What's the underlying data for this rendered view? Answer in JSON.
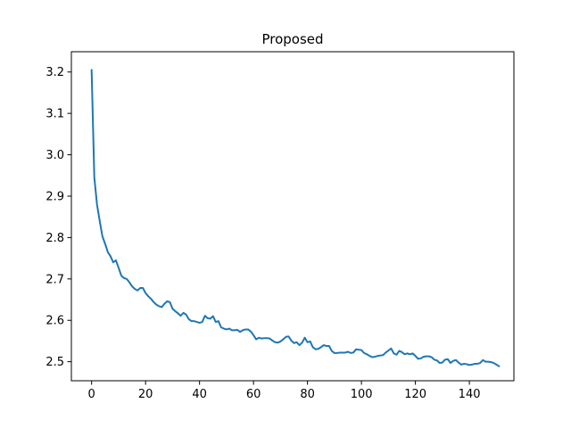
{
  "chart_data": {
    "type": "line",
    "title": "Proposed",
    "xlabel": "",
    "ylabel": "",
    "xlim": [
      -7.5,
      156.5
    ],
    "ylim": [
      2.454,
      3.249
    ],
    "grid": false,
    "legend": "none",
    "x_ticks": [
      0,
      20,
      40,
      60,
      80,
      100,
      120,
      140
    ],
    "y_ticks": [
      2.5,
      2.6,
      2.7,
      2.8,
      2.9,
      3.0,
      3.1,
      3.2
    ],
    "x_tick_labels": [
      "0",
      "20",
      "40",
      "60",
      "80",
      "100",
      "120",
      "140"
    ],
    "y_tick_labels": [
      "2.5",
      "2.6",
      "2.7",
      "2.8",
      "2.9",
      "3.0",
      "3.1",
      "3.2"
    ],
    "series": [
      {
        "color": "#1f77b4",
        "y": [
          3.205,
          2.945,
          2.88,
          2.84,
          2.803,
          2.785,
          2.765,
          2.755,
          2.74,
          2.745,
          2.727,
          2.708,
          2.702,
          2.7,
          2.692,
          2.682,
          2.676,
          2.672,
          2.678,
          2.678,
          2.666,
          2.658,
          2.652,
          2.644,
          2.638,
          2.634,
          2.632,
          2.64,
          2.646,
          2.644,
          2.628,
          2.622,
          2.617,
          2.611,
          2.618,
          2.614,
          2.603,
          2.598,
          2.598,
          2.596,
          2.594,
          2.596,
          2.611,
          2.605,
          2.604,
          2.61,
          2.596,
          2.598,
          2.583,
          2.58,
          2.578,
          2.58,
          2.576,
          2.576,
          2.577,
          2.572,
          2.576,
          2.578,
          2.578,
          2.573,
          2.564,
          2.554,
          2.558,
          2.556,
          2.557,
          2.557,
          2.556,
          2.551,
          2.547,
          2.546,
          2.549,
          2.554,
          2.56,
          2.561,
          2.551,
          2.545,
          2.547,
          2.54,
          2.546,
          2.558,
          2.547,
          2.549,
          2.535,
          2.53,
          2.531,
          2.535,
          2.54,
          2.538,
          2.538,
          2.526,
          2.521,
          2.521,
          2.522,
          2.522,
          2.522,
          2.524,
          2.521,
          2.522,
          2.53,
          2.529,
          2.528,
          2.521,
          2.518,
          2.514,
          2.511,
          2.512,
          2.514,
          2.515,
          2.516,
          2.522,
          2.527,
          2.532,
          2.52,
          2.517,
          2.526,
          2.523,
          2.518,
          2.52,
          2.518,
          2.52,
          2.514,
          2.507,
          2.508,
          2.512,
          2.513,
          2.513,
          2.511,
          2.505,
          2.503,
          2.497,
          2.498,
          2.505,
          2.506,
          2.497,
          2.502,
          2.504,
          2.498,
          2.493,
          2.495,
          2.494,
          2.492,
          2.493,
          2.495,
          2.495,
          2.497,
          2.504,
          2.5,
          2.5,
          2.499,
          2.497,
          2.493,
          2.489
        ]
      }
    ]
  }
}
